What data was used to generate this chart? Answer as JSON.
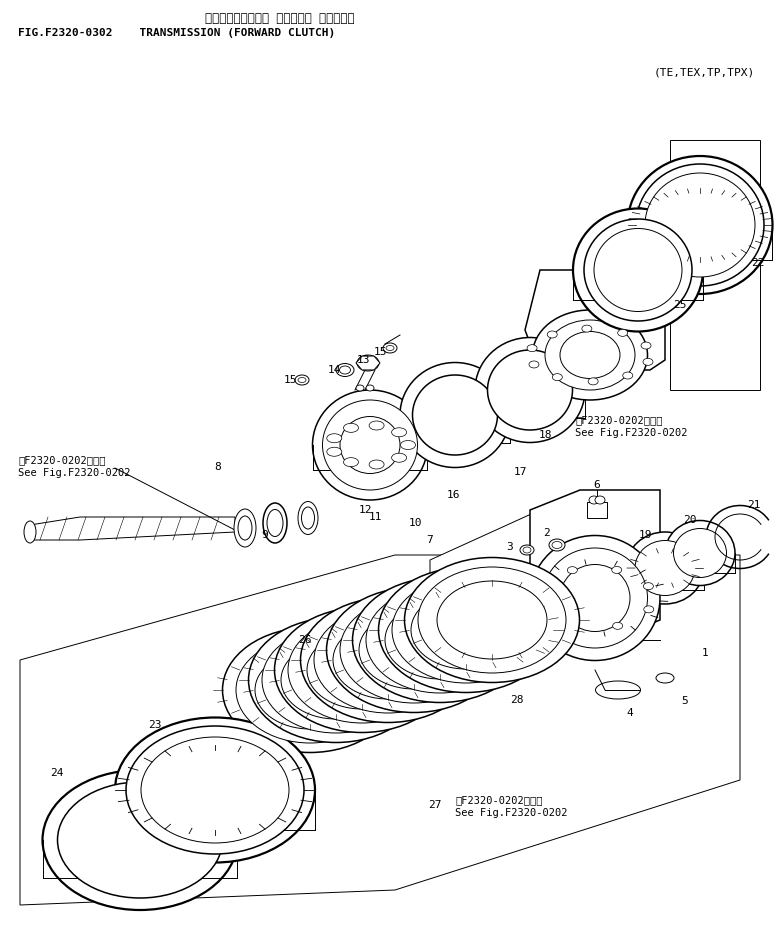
{
  "title_jp": "トランスミッション （ゼンシン クラッチ）",
  "title_en": "FIG.F2320-0302    TRANSMISSION (FORWARD CLUTCH)",
  "subtitle": "(TE,TEX,TP,TPX)",
  "bg_color": "#ffffff",
  "line_color": "#000000",
  "fig_width": 7.75,
  "fig_height": 9.46,
  "dpi": 100,
  "ref1_jp": "第F2320-0202図参照",
  "ref1_en": "See Fig.F2320-0202",
  "ref2_jp": "第F2320-0202図参照",
  "ref2_en": "See Fig.F2320-0202",
  "ref3_jp": "第F2320-0202図参照",
  "ref3_en": "See Fig.F2320-0202"
}
